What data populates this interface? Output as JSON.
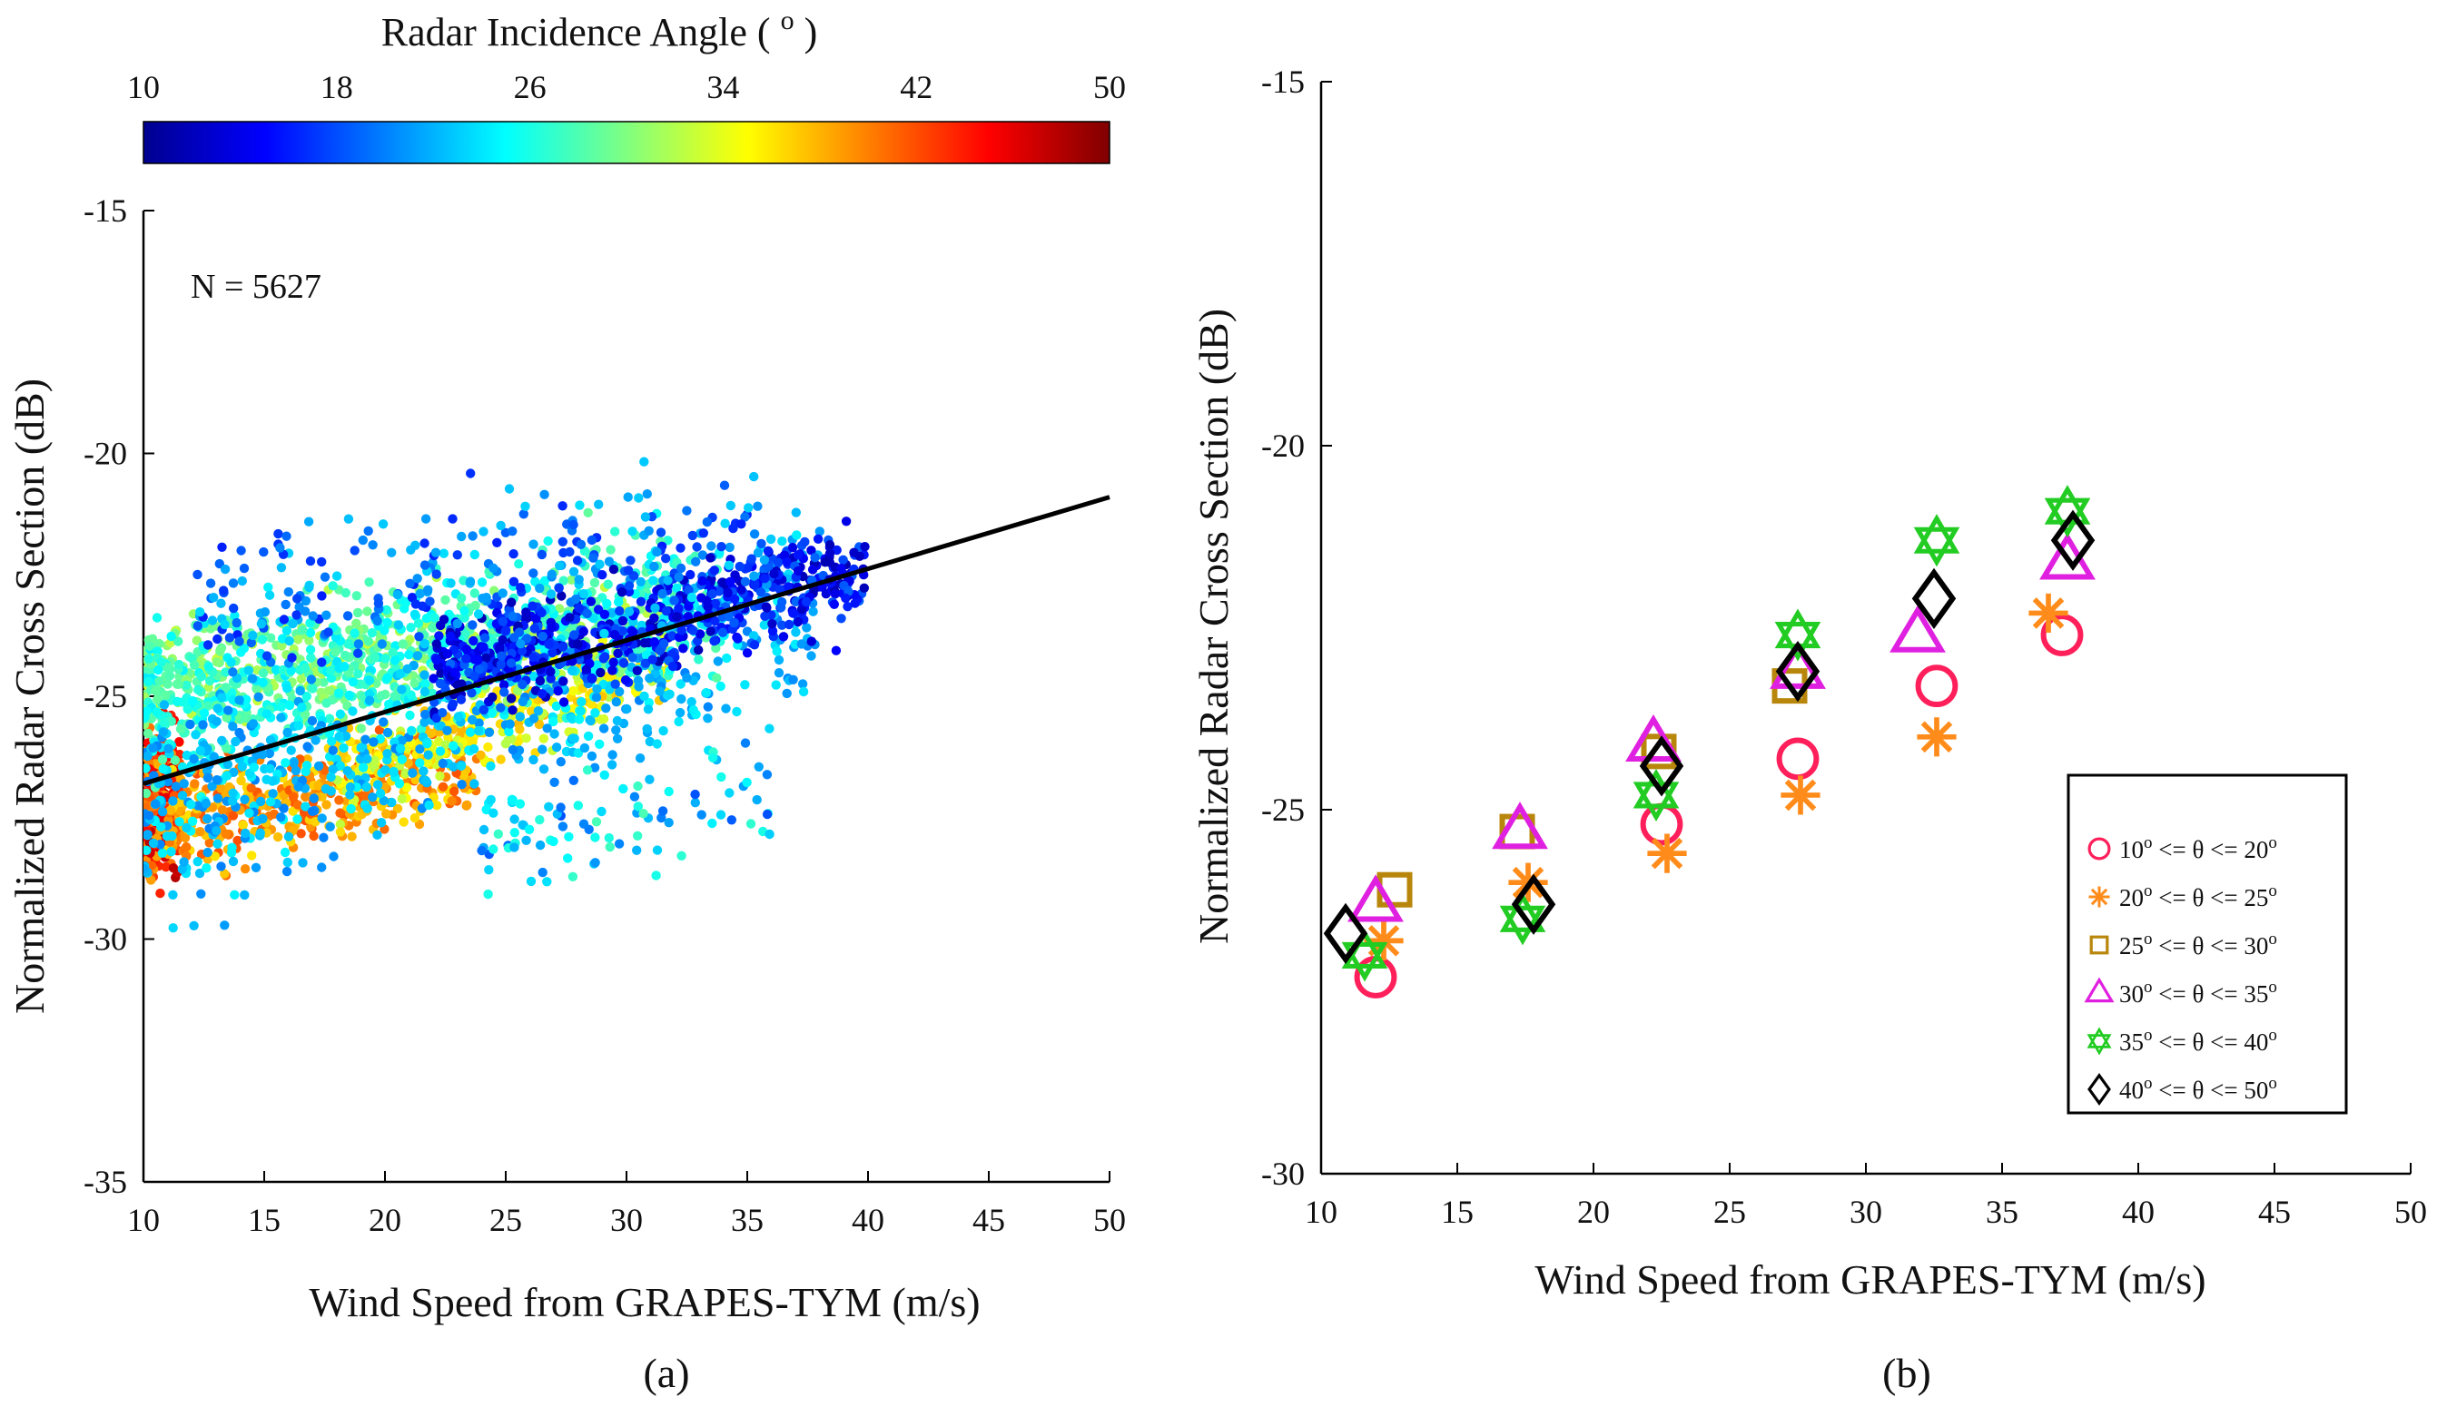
{
  "colors": {
    "axis": "#000000",
    "fit_line": "#000000",
    "jet_stops": [
      "#00008f",
      "#0000ff",
      "#0080ff",
      "#00ffff",
      "#80ff80",
      "#ffff00",
      "#ff8000",
      "#ff0000",
      "#800000"
    ],
    "series_b": [
      "#ff1f5a",
      "#ff8c1a",
      "#b8860b",
      "#e020e0",
      "#22cc22",
      "#000000"
    ]
  },
  "chart_data": [
    {
      "type": "scatter",
      "panel": "a",
      "caption": "(a)",
      "xlabel": "Wind Speed from GRAPES-TYM (m/s)",
      "ylabel": "Normalized Radar Cross Section (dB)",
      "xlim": [
        10,
        50
      ],
      "ylim": [
        -35,
        -15
      ],
      "xticks": [
        "10",
        "15",
        "20",
        "25",
        "30",
        "35",
        "40",
        "45",
        "50"
      ],
      "yticks": [
        "-35",
        "-30",
        "-25",
        "-20",
        "-15"
      ],
      "annotation": "N = 5627",
      "colorbar": {
        "title": "Radar Incidence Angle (",
        "title_sup": "o",
        "title_end": ")",
        "range": [
          10,
          50
        ],
        "ticks": [
          "10",
          "18",
          "26",
          "34",
          "42",
          "50"
        ],
        "colormap": "jet"
      },
      "fit_line": {
        "x": [
          10,
          50
        ],
        "y": [
          -26.8,
          -20.9
        ]
      },
      "clusters": [
        {
          "angle_range": [
            38,
            48
          ],
          "x_range": [
            10,
            11.5
          ],
          "y_center": -27.2,
          "y_spread": 1.6,
          "count": 260
        },
        {
          "angle_range": [
            36,
            42
          ],
          "x_range": [
            11,
            24
          ],
          "y_at_x": [
            [
              11,
              -27.6
            ],
            [
              24,
              -26.4
            ]
          ],
          "y_spread": 1.0,
          "count": 420
        },
        {
          "angle_range": [
            32,
            38
          ],
          "x_range": [
            18,
            32
          ],
          "y_at_x": [
            [
              18,
              -26.6
            ],
            [
              32,
              -24.2
            ]
          ],
          "y_spread": 0.9,
          "count": 320
        },
        {
          "angle_range": [
            28,
            33
          ],
          "x_range": [
            10,
            32
          ],
          "y_at_x": [
            [
              10,
              -24.6
            ],
            [
              32,
              -23.6
            ]
          ],
          "y_spread": 1.1,
          "count": 500
        },
        {
          "angle_range": [
            24,
            29
          ],
          "x_range": [
            10,
            34
          ],
          "y_at_x": [
            [
              10,
              -25.2
            ],
            [
              34,
              -23.0
            ]
          ],
          "y_spread": 1.6,
          "count": 700
        },
        {
          "angle_range": [
            20,
            25
          ],
          "x_range": [
            10,
            38
          ],
          "y_at_x": [
            [
              10,
              -27.5
            ],
            [
              38,
              -23.0
            ]
          ],
          "y_spread": 2.0,
          "count": 700
        },
        {
          "angle_range": [
            12,
            19
          ],
          "x_range": [
            22,
            40
          ],
          "y_at_x": [
            [
              22,
              -24.5
            ],
            [
              40,
              -22.4
            ]
          ],
          "y_spread": 1.0,
          "count": 650
        },
        {
          "angle_range": [
            16,
            24
          ],
          "x_range": [
            12,
            36
          ],
          "y_at_x": [
            [
              12,
              -23.2
            ],
            [
              36,
              -21.6
            ]
          ],
          "y_spread": 1.5,
          "count": 250
        },
        {
          "angle_range": [
            18,
            28
          ],
          "x_range": [
            24,
            36
          ],
          "y_at_x": [
            [
              24,
              -28.0
            ],
            [
              36,
              -27.0
            ]
          ],
          "y_spread": 1.2,
          "count": 90
        }
      ]
    },
    {
      "type": "scatter",
      "panel": "b",
      "caption": "(b)",
      "xlabel": "Wind Speed from GRAPES-TYM (m/s)",
      "ylabel": "Normalized Radar Cross Section (dB)",
      "xlim": [
        10,
        50
      ],
      "ylim": [
        -30,
        -15
      ],
      "xticks": [
        "10",
        "15",
        "20",
        "25",
        "30",
        "35",
        "40",
        "45",
        "50"
      ],
      "yticks": [
        "-30",
        "-25",
        "-20",
        "-15"
      ],
      "legend_position": "lower-right",
      "series": [
        {
          "name": "10o <= θ <= 20o",
          "label_parts": [
            "10",
            "o",
            " <= θ <= 20",
            "o"
          ],
          "marker": "circle",
          "color": "#ff1f5a",
          "points": [
            [
              12.0,
              -27.3
            ],
            [
              22.5,
              -25.2
            ],
            [
              27.5,
              -24.3
            ],
            [
              32.6,
              -23.3
            ],
            [
              37.2,
              -22.6
            ]
          ]
        },
        {
          "name": "20o <= θ <= 25o",
          "label_parts": [
            "20",
            "o",
            " <= θ <= 25",
            "o"
          ],
          "marker": "asterisk",
          "color": "#ff8c1a",
          "points": [
            [
              12.3,
              -26.8
            ],
            [
              17.6,
              -26.0
            ],
            [
              22.7,
              -25.6
            ],
            [
              27.6,
              -24.8
            ],
            [
              32.6,
              -24.0
            ],
            [
              36.7,
              -22.3
            ]
          ]
        },
        {
          "name": "25o <= θ <= 30o",
          "label_parts": [
            "25",
            "o",
            " <= θ <= 30",
            "o"
          ],
          "marker": "square",
          "color": "#b8860b",
          "points": [
            [
              12.7,
              -26.1
            ],
            [
              17.2,
              -25.3
            ],
            [
              22.4,
              -24.2
            ],
            [
              27.2,
              -23.3
            ]
          ]
        },
        {
          "name": "30o <= θ <= 35o",
          "label_parts": [
            "30",
            "o",
            " <= θ <= 35",
            "o"
          ],
          "marker": "triangle",
          "color": "#e020e0",
          "points": [
            [
              12.0,
              -26.3
            ],
            [
              17.3,
              -25.3
            ],
            [
              22.2,
              -24.1
            ],
            [
              27.5,
              -23.1
            ],
            [
              31.9,
              -22.6
            ],
            [
              37.4,
              -21.6
            ]
          ]
        },
        {
          "name": "35o <= θ <= 40o",
          "label_parts": [
            "35",
            "o",
            " <= θ <= 40",
            "o"
          ],
          "marker": "hexagram",
          "color": "#22cc22",
          "points": [
            [
              11.6,
              -27.0
            ],
            [
              17.4,
              -26.5
            ],
            [
              22.3,
              -24.8
            ],
            [
              27.5,
              -22.6
            ],
            [
              32.6,
              -21.3
            ],
            [
              37.4,
              -20.9
            ]
          ]
        },
        {
          "name": "40o <= θ <= 50o",
          "label_parts": [
            "40",
            "o",
            " <= θ <= 50",
            "o"
          ],
          "marker": "diamond",
          "color": "#000000",
          "points": [
            [
              10.9,
              -26.7
            ],
            [
              17.8,
              -26.3
            ],
            [
              22.5,
              -24.4
            ],
            [
              27.5,
              -23.1
            ],
            [
              32.5,
              -22.1
            ],
            [
              37.6,
              -21.3
            ]
          ]
        }
      ]
    }
  ]
}
